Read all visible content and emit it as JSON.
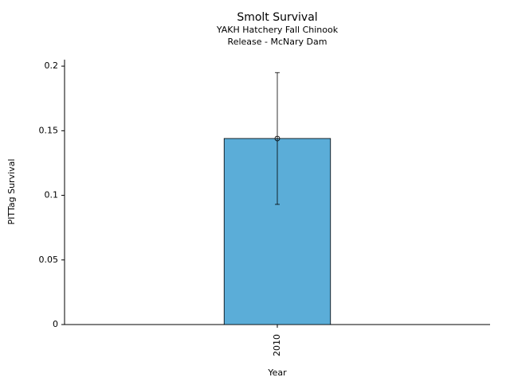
{
  "chart_data": {
    "type": "bar",
    "title": "Smolt Survival",
    "subtitle": [
      "YAKH Hatchery Fall Chinook",
      "Release - McNary Dam"
    ],
    "xlabel": "Year",
    "ylabel": "PITTag Survival",
    "categories": [
      "2010"
    ],
    "values": [
      0.144
    ],
    "errors": [
      0.051
    ],
    "color": "#5badd8",
    "ylim": [
      0,
      0.205
    ],
    "yticks": [
      0,
      0.05,
      0.1,
      0.15,
      0.2
    ],
    "grid": false
  }
}
